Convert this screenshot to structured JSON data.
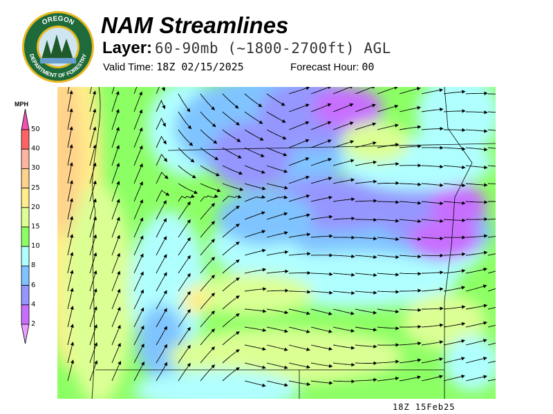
{
  "header": {
    "title": "NAM Streamlines",
    "layer_label": "Layer:",
    "layer_value": "60-90mb (~1800-2700ft) AGL",
    "valid_time_label": "Valid Time:",
    "valid_time": "18Z 02/15/2025",
    "forecast_hour_label": "Forecast Hour:",
    "forecast_hour": "00"
  },
  "logo": {
    "text_top": "OREGON",
    "text_ring": "DEPARTMENT OF FORESTRY"
  },
  "legend": {
    "unit": "MPH",
    "ticks": [
      "50",
      "40",
      "30",
      "25",
      "20",
      "15",
      "10",
      "8",
      "6",
      "4",
      "2"
    ],
    "colors": {
      "above_50": "#f050b0",
      "40-50": "#ff6464",
      "30-40": "#ffb4a0",
      "25-30": "#ffd28c",
      "20-25": "#ffee8a",
      "15-20": "#dcff94",
      "10-15": "#8cff64",
      "8-10": "#b0ffff",
      "6-8": "#80c4ff",
      "4-6": "#9696ff",
      "2-4": "#c86eff",
      "below_2": "#eaa0ff"
    }
  },
  "map": {
    "product": "streamlines",
    "field": "wind speed"
  },
  "footer": {
    "stamp": "18Z 15Feb25"
  }
}
